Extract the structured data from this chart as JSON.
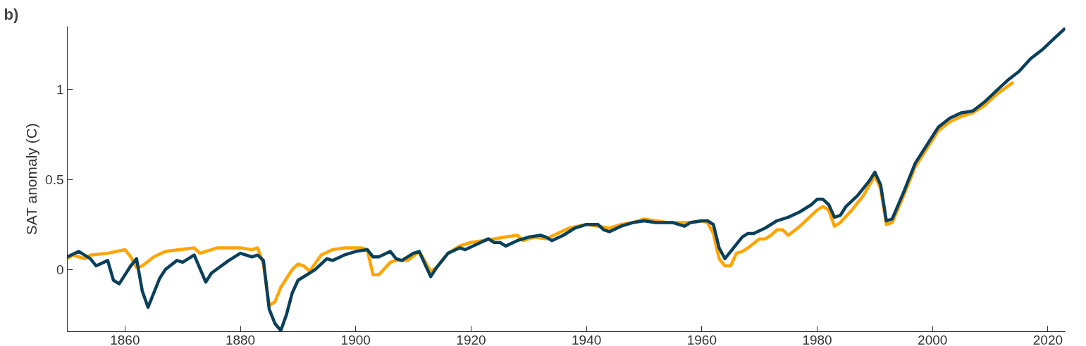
{
  "chart_data": {
    "type": "line",
    "title": "b)",
    "ylabel": "SAT anomaly (C)",
    "xlim": [
      1850,
      2023
    ],
    "ylim": [
      -0.345,
      1.35
    ],
    "xticks": [
      1860,
      1880,
      1900,
      1920,
      1940,
      1960,
      1980,
      2000,
      2020
    ],
    "yticks": [
      0,
      0.5,
      1
    ],
    "grid": false,
    "marker": "none",
    "line_style": "solid",
    "series": [
      {
        "color": "#ffa500",
        "x": [
          1850,
          1851,
          1852,
          1853,
          1854,
          1857,
          1860,
          1861,
          1862,
          1863,
          1865,
          1867,
          1872,
          1873,
          1874,
          1876,
          1880,
          1882,
          1883,
          1884,
          1885,
          1886,
          1887,
          1889,
          1890,
          1891,
          1892,
          1894,
          1896,
          1898,
          1901,
          1902,
          1903,
          1904,
          1906,
          1907,
          1909,
          1911,
          1913,
          1914,
          1916,
          1918,
          1920,
          1922,
          1924,
          1926,
          1928,
          1929,
          1931,
          1933,
          1935,
          1937,
          1940,
          1942,
          1944,
          1946,
          1948,
          1950,
          1952,
          1954,
          1956,
          1958,
          1960,
          1961,
          1962,
          1963,
          1964,
          1965,
          1966,
          1967,
          1968,
          1970,
          1971,
          1972,
          1973,
          1974,
          1975,
          1977,
          1979,
          1980,
          1981,
          1982,
          1983,
          1984,
          1986,
          1988,
          1990,
          1991,
          1992,
          1993,
          1995,
          1997,
          1999,
          2001,
          2003,
          2005,
          2007,
          2009,
          2011,
          2014
        ],
        "values": [
          0.06,
          0.08,
          0.07,
          0.06,
          0.08,
          0.09,
          0.11,
          0.07,
          0.01,
          0.02,
          0.07,
          0.1,
          0.12,
          0.09,
          0.1,
          0.12,
          0.12,
          0.11,
          0.12,
          0.03,
          -0.2,
          -0.18,
          -0.1,
          0.0,
          0.03,
          0.02,
          -0.01,
          0.08,
          0.11,
          0.12,
          0.12,
          0.11,
          -0.03,
          -0.03,
          0.04,
          0.05,
          0.05,
          0.1,
          -0.01,
          0.01,
          0.09,
          0.13,
          0.15,
          0.16,
          0.17,
          0.18,
          0.19,
          0.16,
          0.18,
          0.17,
          0.2,
          0.23,
          0.25,
          0.24,
          0.23,
          0.25,
          0.26,
          0.28,
          0.27,
          0.26,
          0.26,
          0.26,
          0.27,
          0.26,
          0.2,
          0.06,
          0.02,
          0.02,
          0.09,
          0.1,
          0.12,
          0.17,
          0.17,
          0.19,
          0.22,
          0.22,
          0.19,
          0.24,
          0.3,
          0.33,
          0.35,
          0.33,
          0.24,
          0.26,
          0.33,
          0.41,
          0.52,
          0.45,
          0.25,
          0.26,
          0.41,
          0.57,
          0.67,
          0.77,
          0.82,
          0.85,
          0.87,
          0.91,
          0.97,
          1.04
        ]
      },
      {
        "color": "#0b405c",
        "x": [
          1850,
          1852,
          1854,
          1855,
          1857,
          1858,
          1859,
          1861,
          1862,
          1863,
          1864,
          1866,
          1867,
          1869,
          1870,
          1872,
          1874,
          1875,
          1878,
          1880,
          1882,
          1883,
          1884,
          1885,
          1886,
          1887,
          1888,
          1889,
          1890,
          1892,
          1893,
          1895,
          1896,
          1898,
          1900,
          1902,
          1903,
          1904,
          1906,
          1907,
          1908,
          1910,
          1911,
          1913,
          1914,
          1916,
          1918,
          1919,
          1921,
          1923,
          1924,
          1925,
          1926,
          1928,
          1930,
          1932,
          1933,
          1934,
          1936,
          1938,
          1940,
          1942,
          1943,
          1944,
          1946,
          1948,
          1950,
          1952,
          1954,
          1955,
          1956,
          1957,
          1958,
          1960,
          1961,
          1962,
          1963,
          1964,
          1966,
          1967,
          1968,
          1969,
          1971,
          1973,
          1975,
          1977,
          1979,
          1980,
          1981,
          1982,
          1983,
          1984,
          1985,
          1987,
          1989,
          1990,
          1991,
          1992,
          1993,
          1995,
          1997,
          1999,
          2001,
          2003,
          2005,
          2007,
          2009,
          2011,
          2013,
          2015,
          2017,
          2019,
          2021,
          2023
        ],
        "values": [
          0.07,
          0.1,
          0.06,
          0.02,
          0.05,
          -0.06,
          -0.08,
          0.02,
          0.06,
          -0.12,
          -0.21,
          -0.05,
          0.0,
          0.05,
          0.04,
          0.08,
          -0.07,
          -0.02,
          0.05,
          0.09,
          0.07,
          0.08,
          0.05,
          -0.22,
          -0.3,
          -0.34,
          -0.25,
          -0.13,
          -0.06,
          -0.02,
          0.0,
          0.06,
          0.05,
          0.08,
          0.1,
          0.11,
          0.07,
          0.07,
          0.1,
          0.06,
          0.05,
          0.09,
          0.1,
          -0.04,
          0.01,
          0.09,
          0.12,
          0.11,
          0.14,
          0.17,
          0.15,
          0.15,
          0.13,
          0.16,
          0.18,
          0.19,
          0.18,
          0.16,
          0.19,
          0.23,
          0.25,
          0.25,
          0.22,
          0.21,
          0.24,
          0.26,
          0.27,
          0.26,
          0.26,
          0.26,
          0.25,
          0.24,
          0.26,
          0.27,
          0.27,
          0.25,
          0.12,
          0.06,
          0.14,
          0.18,
          0.2,
          0.2,
          0.23,
          0.27,
          0.29,
          0.32,
          0.36,
          0.39,
          0.39,
          0.36,
          0.29,
          0.3,
          0.35,
          0.41,
          0.49,
          0.54,
          0.47,
          0.27,
          0.28,
          0.43,
          0.59,
          0.69,
          0.79,
          0.84,
          0.87,
          0.88,
          0.93,
          0.99,
          1.05,
          1.1,
          1.17,
          1.22,
          1.28,
          1.34
        ]
      }
    ]
  }
}
